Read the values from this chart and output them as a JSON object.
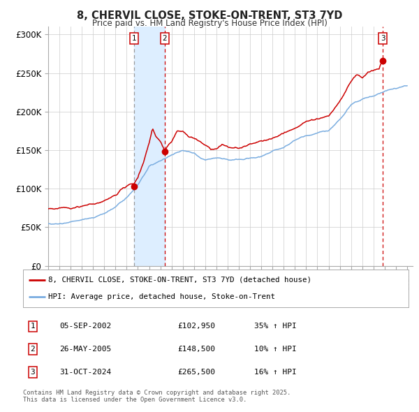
{
  "title": "8, CHERVIL CLOSE, STOKE-ON-TRENT, ST3 7YD",
  "subtitle": "Price paid vs. HM Land Registry's House Price Index (HPI)",
  "ylabel_ticks": [
    "£0",
    "£50K",
    "£100K",
    "£150K",
    "£200K",
    "£250K",
    "£300K"
  ],
  "ytick_values": [
    0,
    50000,
    100000,
    150000,
    200000,
    250000,
    300000
  ],
  "ylim": [
    0,
    310000
  ],
  "xlim_start": 1995.0,
  "xlim_end": 2027.5,
  "sale_points": [
    {
      "label": "1",
      "date_num": 2002.68,
      "price": 102950,
      "vline_style": "grey_dashed"
    },
    {
      "label": "2",
      "date_num": 2005.4,
      "price": 148500,
      "vline_style": "red_dashed"
    },
    {
      "label": "3",
      "date_num": 2024.83,
      "price": 265500,
      "vline_style": "red_dashed"
    }
  ],
  "sale_between_1_2_shade": {
    "x_start": 2002.68,
    "x_end": 2005.4
  },
  "sale_after_3_shade": {
    "x_start": 2024.83,
    "x_end": 2027.5
  },
  "legend_entries": [
    "8, CHERVIL CLOSE, STOKE-ON-TRENT, ST3 7YD (detached house)",
    "HPI: Average price, detached house, Stoke-on-Trent"
  ],
  "table_rows": [
    {
      "label": "1",
      "date": "05-SEP-2002",
      "price": "£102,950",
      "change": "35% ↑ HPI"
    },
    {
      "label": "2",
      "date": "26-MAY-2005",
      "price": "£148,500",
      "change": "10% ↑ HPI"
    },
    {
      "label": "3",
      "date": "31-OCT-2024",
      "price": "£265,500",
      "change": "16% ↑ HPI"
    }
  ],
  "footer": "Contains HM Land Registry data © Crown copyright and database right 2025.\nThis data is licensed under the Open Government Licence v3.0.",
  "red_line_color": "#cc0000",
  "blue_line_color": "#7aade0",
  "shade_color": "#ddeeff",
  "hatch_color": "#aaaaaa",
  "background_color": "#ffffff",
  "grid_color": "#cccccc"
}
